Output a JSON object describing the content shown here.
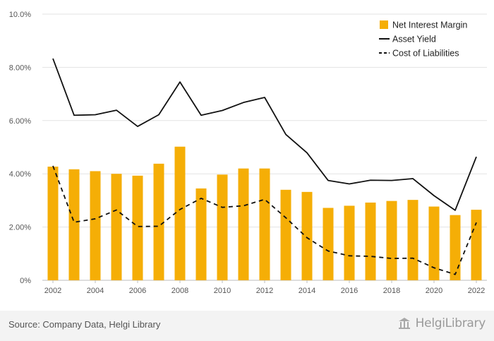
{
  "chart_data": {
    "type": "bar",
    "categories": [
      "2002",
      "2003",
      "2004",
      "2005",
      "2006",
      "2007",
      "2008",
      "2009",
      "2010",
      "2011",
      "2012",
      "2013",
      "2014",
      "2015",
      "2016",
      "2017",
      "2018",
      "2019",
      "2020",
      "2021",
      "2022"
    ],
    "series": [
      {
        "name": "Net Interest Margin",
        "type": "bar",
        "color": "#f5ae06",
        "values": [
          4.27,
          4.17,
          4.1,
          4.0,
          3.93,
          4.38,
          5.02,
          3.45,
          3.97,
          4.2,
          4.2,
          3.4,
          3.32,
          2.72,
          2.8,
          2.92,
          2.98,
          3.02,
          2.77,
          2.45,
          2.65
        ]
      },
      {
        "name": "Asset Yield",
        "type": "line",
        "style": "solid",
        "color": "#111111",
        "values": [
          8.33,
          6.2,
          6.22,
          6.39,
          5.78,
          6.22,
          7.45,
          6.2,
          6.38,
          6.68,
          6.87,
          5.48,
          4.79,
          3.75,
          3.62,
          3.76,
          3.75,
          3.82,
          3.18,
          2.63,
          4.64
        ]
      },
      {
        "name": "Cost of Liabilities",
        "type": "line",
        "style": "dashed",
        "color": "#111111",
        "values": [
          4.3,
          2.18,
          2.31,
          2.64,
          2.02,
          2.03,
          2.66,
          3.08,
          2.74,
          2.8,
          3.04,
          2.35,
          1.6,
          1.1,
          0.92,
          0.9,
          0.82,
          0.83,
          0.47,
          0.22,
          2.17
        ]
      }
    ],
    "x_tick_labels": [
      "2002",
      "2004",
      "2006",
      "2008",
      "2010",
      "2012",
      "2014",
      "2016",
      "2018",
      "2020",
      "2022"
    ],
    "y_ticks": [
      {
        "value": 0,
        "label": "0%"
      },
      {
        "value": 2,
        "label": "2.00%"
      },
      {
        "value": 4,
        "label": "4.00%"
      },
      {
        "value": 6,
        "label": "6.00%"
      },
      {
        "value": 8,
        "label": "8.00%"
      },
      {
        "value": 10,
        "label": "10.0%"
      }
    ],
    "ylim": [
      0,
      10
    ],
    "grid": true,
    "legend_position": "top-right"
  },
  "footer": {
    "source": "Source: Company Data, Helgi Library",
    "brand": "HelgiLibrary"
  }
}
